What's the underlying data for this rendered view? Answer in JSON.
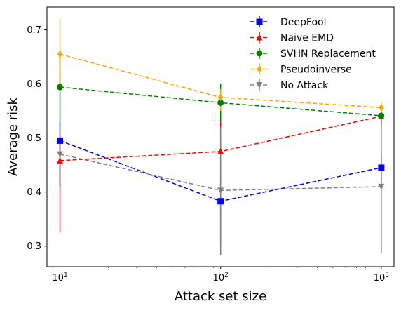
{
  "chart_data": {
    "type": "line",
    "title": "",
    "xlabel": "Attack set size",
    "ylabel": "Average risk",
    "xscale": "log",
    "x": [
      10,
      100,
      1000
    ],
    "xlim": [
      8.3,
      1200
    ],
    "ylim": [
      0.262,
      0.742
    ],
    "xticks": [
      {
        "value": 10,
        "base": "10",
        "exp": "1"
      },
      {
        "value": 100,
        "base": "10",
        "exp": "2"
      },
      {
        "value": 1000,
        "base": "10",
        "exp": "3"
      }
    ],
    "yticks": [
      {
        "value": 0.3,
        "label": "0.3"
      },
      {
        "value": 0.4,
        "label": "0.4"
      },
      {
        "value": 0.5,
        "label": "0.5"
      },
      {
        "value": 0.6,
        "label": "0.6"
      },
      {
        "value": 0.7,
        "label": "0.7"
      }
    ],
    "grid": false,
    "legend_position": "top-right",
    "series": [
      {
        "name": "DeepFool",
        "color": "#0000ff",
        "marker": "square",
        "values": [
          0.495,
          0.383,
          0.445
        ],
        "err_low": [
          0.41,
          0.3,
          0.42
        ],
        "err_high": [
          0.53,
          0.42,
          0.47
        ]
      },
      {
        "name": "Naive EMD",
        "color": "#ff0000",
        "marker": "triangle-up",
        "values": [
          0.458,
          0.475,
          0.54
        ],
        "err_low": [
          0.325,
          0.4,
          0.53
        ],
        "err_high": [
          0.5,
          0.53,
          0.55
        ]
      },
      {
        "name": "SVHN Replacement",
        "color": "#008000",
        "marker": "circle",
        "values": [
          0.594,
          0.565,
          0.541
        ],
        "err_low": [
          0.53,
          0.53,
          0.52
        ],
        "err_high": [
          0.66,
          0.6,
          0.56
        ]
      },
      {
        "name": "Pseudoinverse",
        "color": "#ffa500",
        "marker": "diamond",
        "values": [
          0.655,
          0.575,
          0.556
        ],
        "err_low": [
          0.59,
          0.55,
          0.548
        ],
        "err_high": [
          0.72,
          0.59,
          0.565
        ]
      },
      {
        "name": "No Attack",
        "color": "#808080",
        "marker": "triangle-down",
        "values": [
          0.47,
          0.403,
          0.41
        ],
        "err_low": [
          0.41,
          0.283,
          0.288
        ],
        "err_high": [
          0.53,
          0.52,
          0.535
        ]
      }
    ]
  }
}
